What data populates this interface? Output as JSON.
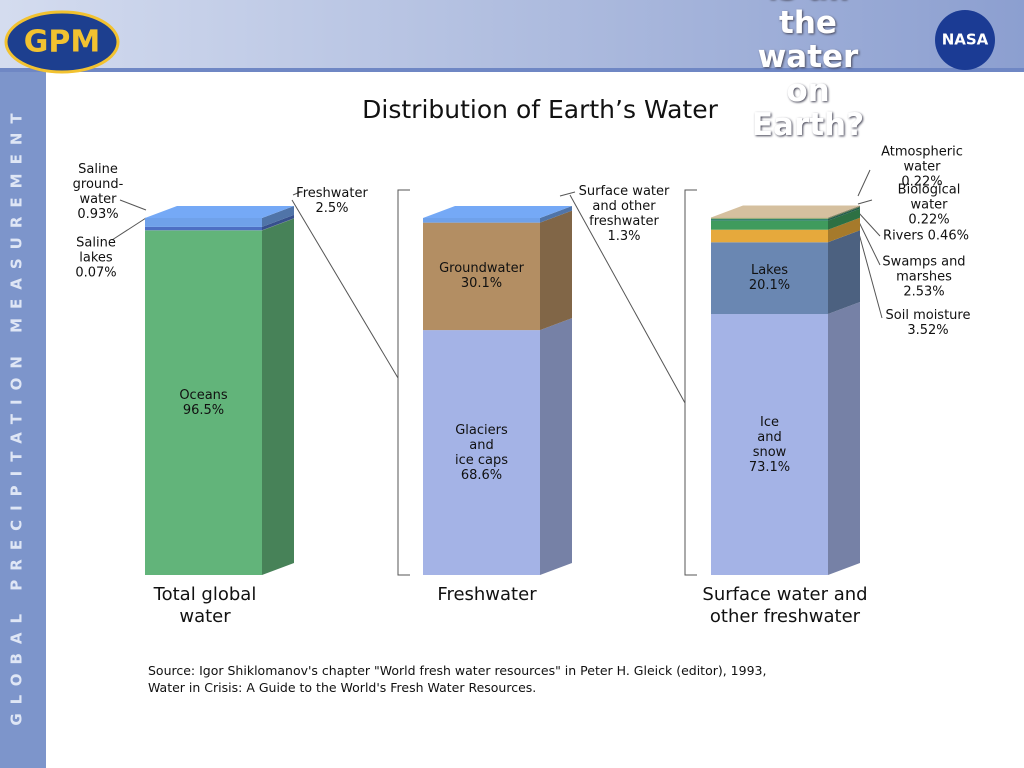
{
  "header": {
    "title": "Where is all the water on Earth?",
    "left_logo": "GPM",
    "right_logo": "NASA",
    "sidebar": "GLOBAL PRECIPITATION MEASUREMENT"
  },
  "chart_data": {
    "type": "stacked_bar_3d",
    "title": "Distribution of Earth’s Water",
    "categories": [
      "Total global\nwater",
      "Freshwater",
      "Surface water and\nother freshwater"
    ],
    "ylim": [
      0,
      100
    ],
    "bars": [
      {
        "segments": [
          {
            "name": "Oceans",
            "value": 96.5,
            "value_label": "96.5%",
            "color": "#62b47a"
          },
          {
            "name": "Saline\nlakes",
            "value": 0.07,
            "value_label": "0.07%",
            "color": "#8fa3a8"
          },
          {
            "name": "Saline\nground-\nwater",
            "value": 0.93,
            "value_label": "0.93%",
            "color": "#4d6fc4"
          },
          {
            "name": "Freshwater",
            "value": 2.5,
            "value_label": "2.5%",
            "color": "#6fa1ea"
          }
        ]
      },
      {
        "segments": [
          {
            "name": "Glaciers\nand\nice caps",
            "value": 68.6,
            "value_label": "68.6%",
            "color": "#a4b3e6"
          },
          {
            "name": "Groundwater",
            "value": 30.1,
            "value_label": "30.1%",
            "color": "#b38e63"
          },
          {
            "name": "Surface water\nand other\nfreshwater",
            "value": 1.3,
            "value_label": "1.3%",
            "color": "#6fa1ea"
          }
        ]
      },
      {
        "segments": [
          {
            "name": "Ice\nand\nsnow",
            "value": 73.1,
            "value_label": "73.1%",
            "color": "#a4b3e6"
          },
          {
            "name": "Lakes",
            "value": 20.1,
            "value_label": "20.1%",
            "color": "#6a87b2"
          },
          {
            "name": "Soil moisture",
            "value": 3.52,
            "value_label": "3.52%",
            "color": "#e6a93c"
          },
          {
            "name": "Swamps and\nmarshes",
            "value": 2.53,
            "value_label": "2.53%",
            "color": "#3f9b5d"
          },
          {
            "name": "Rivers",
            "value": 0.46,
            "value_label": "0.46%",
            "color": "#2f7f6b"
          },
          {
            "name": "Biological water",
            "value": 0.22,
            "value_label": "0.22%",
            "color": "#6f9f57"
          },
          {
            "name": "Atmospheric water",
            "value": 0.22,
            "value_label": "0.22%",
            "color": "#cbb797"
          }
        ]
      }
    ],
    "source": "Source: Igor Shiklomanov's chapter \"World fresh water resources\" in Peter H. Gleick (editor), 1993,\nWater in Crisis: A Guide to the World's Fresh Water Resources."
  }
}
